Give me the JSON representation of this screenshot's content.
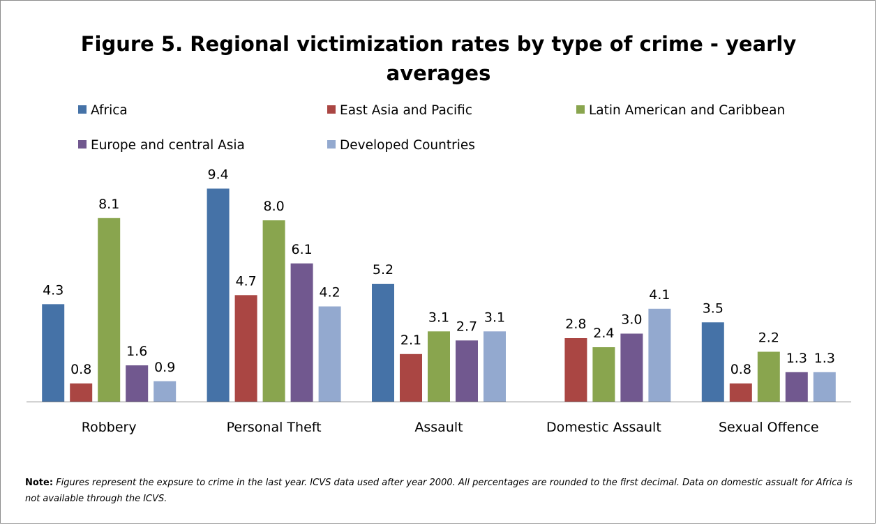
{
  "chart_data": {
    "type": "bar",
    "title_lines": [
      "Figure 5. Regional victimization rates by type of crime - yearly",
      "averages"
    ],
    "categories": [
      "Robbery",
      "Personal Theft",
      "Assault",
      "Domestic Assault",
      "Sexual Offence"
    ],
    "series": [
      {
        "name": "Africa",
        "color": "#4572A7",
        "values": [
          4.3,
          9.4,
          5.2,
          null,
          3.5
        ],
        "labels": [
          "4.3",
          "9.4",
          "5.2",
          null,
          "3.5"
        ]
      },
      {
        "name": "East Asia and Pacific",
        "color": "#AA4643",
        "values": [
          0.8,
          4.7,
          2.1,
          2.8,
          0.8
        ],
        "labels": [
          "0.8",
          "4.7",
          "2.1",
          "2.8",
          "0.8"
        ]
      },
      {
        "name": "Latin American and Caribbean",
        "color": "#89A54E",
        "values": [
          8.1,
          8.0,
          3.1,
          2.4,
          2.2
        ],
        "labels": [
          "8.1",
          "8.0",
          "3.1",
          "2.4",
          "2.2"
        ]
      },
      {
        "name": "Europe and central Asia",
        "color": "#71588F",
        "values": [
          1.6,
          6.1,
          2.7,
          3.0,
          1.3
        ],
        "labels": [
          "1.6",
          "6.1",
          "2.7",
          "3.0",
          "1.3"
        ]
      },
      {
        "name": "Developed Countries",
        "color": "#93A9CF",
        "values": [
          0.9,
          4.2,
          3.1,
          4.1,
          1.3
        ],
        "labels": [
          "0.9",
          "4.2",
          "3.1",
          "4.1",
          "1.3"
        ]
      }
    ],
    "ylim": [
      0,
      10
    ],
    "legend_position": "top",
    "grid": false,
    "xlabel": "",
    "ylabel": ""
  },
  "note": {
    "label": "Note:",
    "text": "Figures represent the expsure to crime in the last year. ICVS data used after year 2000. All percentages are rounded to the first decimal. Data on domestic assualt for Africa is not available through the ICVS."
  }
}
